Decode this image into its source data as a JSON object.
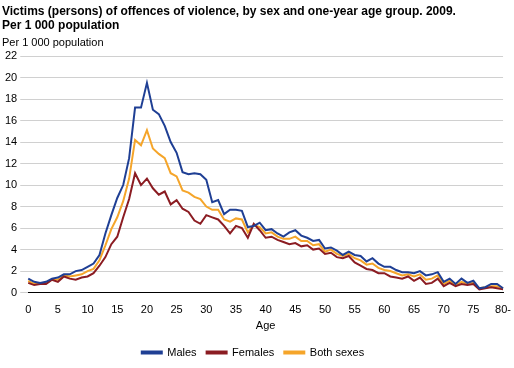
{
  "chart_data": {
    "type": "line",
    "title": [
      "Victims (persons) of offences of violence, by sex and one-year age group. 2009.",
      "Per 1 000 population"
    ],
    "subtitle": "Per 1 000 population",
    "x_label": "Age",
    "categories": [
      "0",
      null,
      null,
      null,
      null,
      "5",
      null,
      null,
      null,
      null,
      "10",
      null,
      null,
      null,
      null,
      "15",
      null,
      null,
      null,
      null,
      "20",
      null,
      null,
      null,
      null,
      "25",
      null,
      null,
      null,
      null,
      "30",
      null,
      null,
      null,
      null,
      "35",
      null,
      null,
      null,
      null,
      "40",
      null,
      null,
      null,
      null,
      "45",
      null,
      null,
      null,
      null,
      "50",
      null,
      null,
      null,
      null,
      "55",
      null,
      null,
      null,
      null,
      "60",
      null,
      null,
      null,
      null,
      "65",
      null,
      null,
      null,
      null,
      "70",
      null,
      null,
      null,
      null,
      "75",
      null,
      null,
      null,
      null,
      "80-"
    ],
    "series": [
      {
        "name": "Males",
        "color": "#1f3f94",
        "values": [
          1.3,
          1.0,
          0.9,
          1.0,
          1.3,
          1.4,
          1.7,
          1.7,
          2.0,
          2.1,
          2.4,
          2.7,
          3.5,
          5.5,
          7.2,
          8.8,
          10,
          12.5,
          17.2,
          17.2,
          19.5,
          17,
          16.6,
          15.5,
          14,
          13,
          11.2,
          11,
          11.1,
          11,
          10.5,
          8.4,
          8.6,
          7.3,
          7.7,
          7.7,
          7.6,
          6.1,
          6.2,
          6.5,
          5.8,
          5.9,
          5.5,
          5.2,
          5.6,
          5.8,
          5.3,
          5.1,
          4.8,
          4.9,
          4.1,
          4.2,
          3.9,
          3.5,
          3.8,
          3.5,
          3.4,
          2.9,
          3.2,
          2.7,
          2.4,
          2.4,
          2.1,
          1.9,
          1.9,
          1.8,
          2.0,
          1.6,
          1.7,
          1.9,
          1.0,
          1.3,
          0.8,
          1.3,
          0.9,
          1.1,
          0.4,
          0.5,
          0.8,
          0.8,
          0.4
        ]
      },
      {
        "name": "Females",
        "color": "#8b1c22",
        "values": [
          0.9,
          0.7,
          0.8,
          0.8,
          1.2,
          1.0,
          1.5,
          1.3,
          1.2,
          1.4,
          1.5,
          1.8,
          2.5,
          3.3,
          4.5,
          5.2,
          7.0,
          8.7,
          11.1,
          10.0,
          10.6,
          9.7,
          9.1,
          9.4,
          8.2,
          8.6,
          7.8,
          7.5,
          6.7,
          6.4,
          7.2,
          7.0,
          6.8,
          6.2,
          5.5,
          6.2,
          6.0,
          5.1,
          6.4,
          5.8,
          5.1,
          5.2,
          4.9,
          4.7,
          4.5,
          4.6,
          4.3,
          4.4,
          4.0,
          4.1,
          3.6,
          3.7,
          3.3,
          3.2,
          3.4,
          2.8,
          2.5,
          2.2,
          2.1,
          1.8,
          1.8,
          1.5,
          1.4,
          1.3,
          1.5,
          1.1,
          1.4,
          0.8,
          0.9,
          1.3,
          0.6,
          0.9,
          0.6,
          0.8,
          0.7,
          0.8,
          0.3,
          0.4,
          0.5,
          0.4,
          0.3
        ]
      },
      {
        "name": "Both sexes",
        "color": "#f5a52a",
        "values": [
          1.1,
          0.8,
          0.8,
          0.9,
          1.2,
          1.2,
          1.6,
          1.5,
          1.6,
          1.7,
          2.0,
          2.2,
          3.0,
          4.4,
          5.9,
          7.0,
          8.5,
          10.6,
          14.2,
          13.7,
          15.1,
          13.4,
          12.9,
          12.5,
          11.1,
          10.8,
          9.5,
          9.3,
          8.9,
          8.7,
          8.0,
          7.7,
          7.7,
          6.8,
          6.6,
          6.9,
          6.8,
          5.6,
          6.3,
          6.1,
          5.5,
          5.6,
          5.2,
          5.0,
          5.0,
          5.2,
          4.8,
          4.8,
          4.4,
          4.5,
          3.8,
          4.0,
          3.6,
          3.4,
          3.6,
          3.2,
          3.0,
          2.6,
          2.7,
          2.3,
          2.1,
          2.0,
          1.8,
          1.6,
          1.7,
          1.5,
          1.7,
          1.2,
          1.3,
          1.6,
          0.8,
          1.1,
          0.7,
          1.0,
          0.8,
          0.9,
          0.4,
          0.5,
          0.6,
          0.6,
          0.4
        ]
      }
    ],
    "ylim": [
      0,
      22
    ],
    "yticks": [
      0,
      2,
      4,
      6,
      8,
      10,
      12,
      14,
      16,
      18,
      20,
      22
    ],
    "grid": true,
    "legend": "bottom"
  }
}
